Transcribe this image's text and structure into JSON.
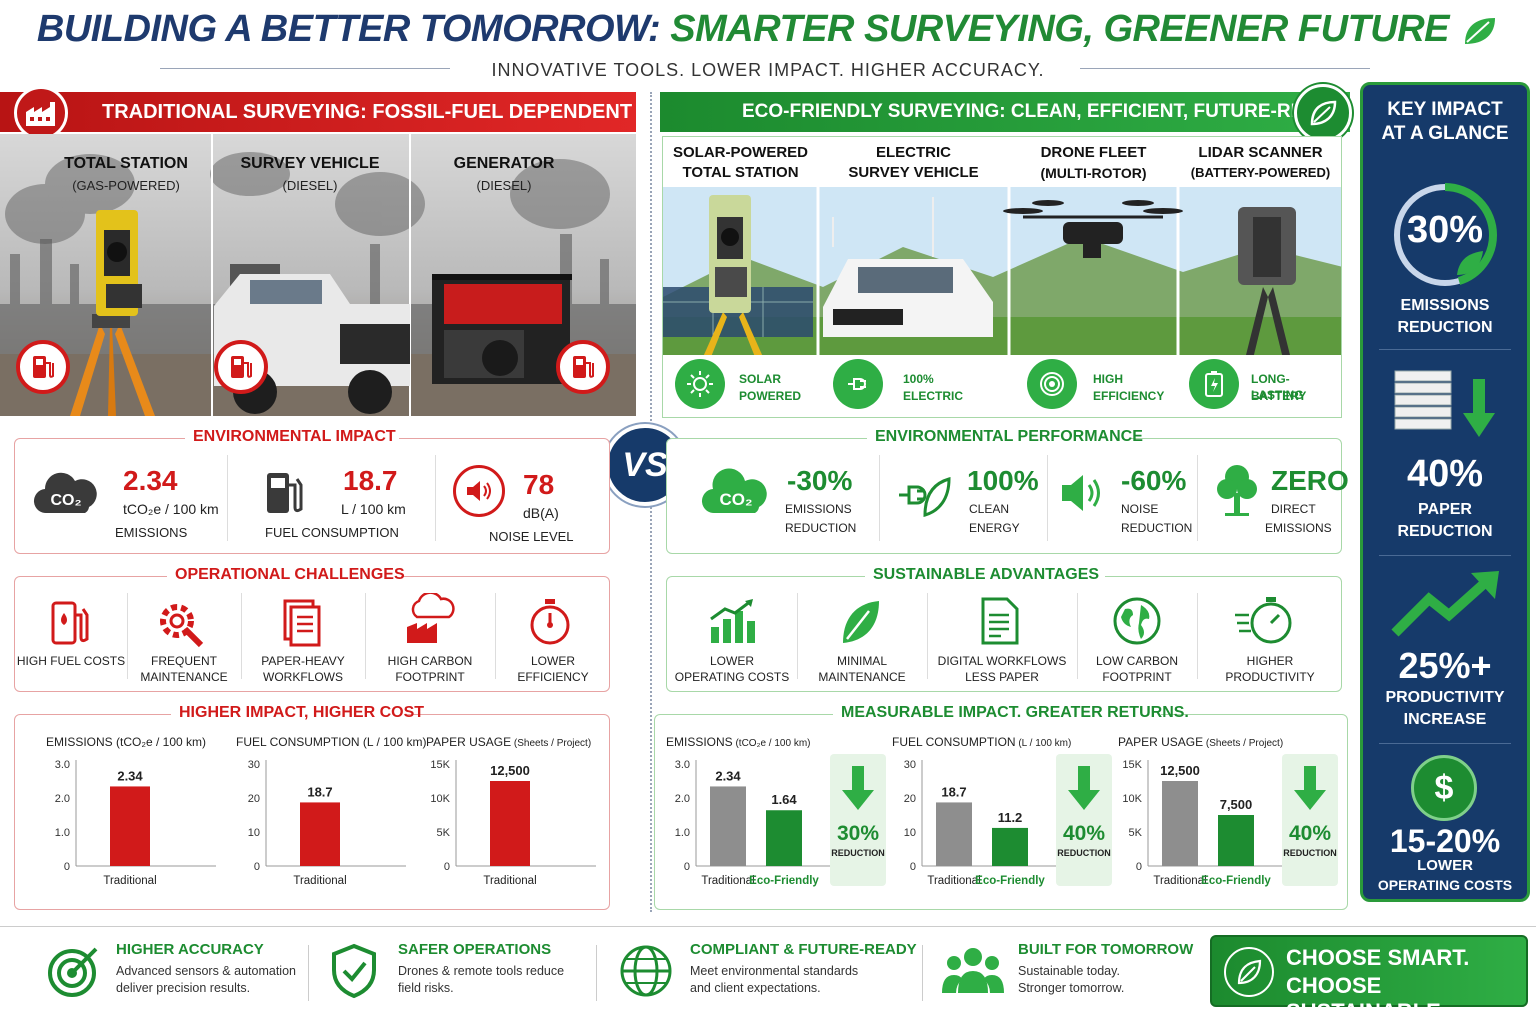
{
  "header": {
    "title_part1": "BUILDING A BETTER TOMORROW:",
    "title_part2": "SMARTER SURVEYING, GREENER FUTURE",
    "subtitle": "INNOVATIVE TOOLS. LOWER IMPACT. HIGHER ACCURACY."
  },
  "traditional": {
    "banner": "TRADITIONAL SURVEYING: FOSSIL-FUEL DEPENDENT",
    "equipment": [
      {
        "name": "TOTAL STATION",
        "sub": "(GAS-POWERED)"
      },
      {
        "name": "SURVEY VEHICLE",
        "sub": "(DIESEL)"
      },
      {
        "name": "GENERATOR",
        "sub": "(DIESEL)"
      }
    ],
    "env_title": "ENVIRONMENTAL IMPACT",
    "env": [
      {
        "value": "2.34",
        "unit": "tCO₂e / 100 km",
        "label": "EMISSIONS"
      },
      {
        "value": "18.7",
        "unit": "L / 100 km",
        "label": "FUEL CONSUMPTION"
      },
      {
        "value": "78",
        "unit": "dB(A)",
        "label": "NOISE LEVEL"
      }
    ],
    "ops_title": "OPERATIONAL CHALLENGES",
    "ops": [
      {
        "l1": "HIGH FUEL COSTS",
        "l2": ""
      },
      {
        "l1": "FREQUENT",
        "l2": "MAINTENANCE"
      },
      {
        "l1": "PAPER-HEAVY",
        "l2": "WORKFLOWS"
      },
      {
        "l1": "HIGH CARBON",
        "l2": "FOOTPRINT"
      },
      {
        "l1": "LOWER",
        "l2": "EFFICIENCY"
      }
    ],
    "charts_title": "HIGHER IMPACT, HIGHER COST"
  },
  "vs": "VS",
  "eco": {
    "banner": "ECO-FRIENDLY SURVEYING: CLEAN, EFFICIENT, FUTURE-READY",
    "equipment": [
      {
        "l1": "SOLAR-POWERED",
        "l2": "TOTAL STATION",
        "f1": "SOLAR",
        "f2": "POWERED"
      },
      {
        "l1": "ELECTRIC",
        "l2": "SURVEY VEHICLE",
        "f1": "100%",
        "f2": "ELECTRIC"
      },
      {
        "l1": "DRONE FLEET",
        "l2": "(MULTI-ROTOR)",
        "f1": "HIGH",
        "f2": "EFFICIENCY"
      },
      {
        "l1": "LIDAR SCANNER",
        "l2": "(BATTERY-POWERED)",
        "f1": "LONG-LASTING",
        "f2": "BATTERY"
      }
    ],
    "env_title": "ENVIRONMENTAL PERFORMANCE",
    "env": [
      {
        "value": "-30%",
        "l1": "EMISSIONS",
        "l2": "REDUCTION"
      },
      {
        "value": "100%",
        "l1": "CLEAN",
        "l2": "ENERGY"
      },
      {
        "value": "-60%",
        "l1": "NOISE",
        "l2": "REDUCTION"
      },
      {
        "value": "ZERO",
        "l1": "DIRECT",
        "l2": "EMISSIONS"
      }
    ],
    "adv_title": "SUSTAINABLE ADVANTAGES",
    "adv": [
      {
        "l1": "LOWER",
        "l2": "OPERATING COSTS"
      },
      {
        "l1": "MINIMAL",
        "l2": "MAINTENANCE"
      },
      {
        "l1": "DIGITAL WORKFLOWS",
        "l2": "LESS PAPER"
      },
      {
        "l1": "LOW CARBON",
        "l2": "FOOTPRINT"
      },
      {
        "l1": "HIGHER",
        "l2": "PRODUCTIVITY"
      }
    ],
    "charts_title": "MEASURABLE IMPACT. GREATER RETURNS."
  },
  "sidebar": {
    "title_l1": "KEY IMPACT",
    "title_l2": "AT A GLANCE",
    "items": [
      {
        "value": "30%",
        "l1": "EMISSIONS",
        "l2": "REDUCTION"
      },
      {
        "value": "40%",
        "l1": "PAPER",
        "l2": "REDUCTION"
      },
      {
        "value": "25%+",
        "l1": "PRODUCTIVITY",
        "l2": "INCREASE"
      },
      {
        "value": "15-20%",
        "l1": "LOWER",
        "l2": "OPERATING COSTS"
      }
    ],
    "dollar": "$"
  },
  "footer": {
    "items": [
      {
        "title": "HIGHER ACCURACY",
        "t1": "Advanced sensors & automation",
        "t2": "deliver precision results."
      },
      {
        "title": "SAFER OPERATIONS",
        "t1": "Drones & remote tools reduce",
        "t2": "field risks."
      },
      {
        "title": "COMPLIANT & FUTURE-READY",
        "t1": "Meet environmental standards",
        "t2": "and client expectations."
      },
      {
        "title": "BUILT FOR TOMORROW",
        "t1": "Sustainable today.",
        "t2": "Stronger tomorrow."
      }
    ],
    "cta_l1": "CHOOSE SMART.",
    "cta_l2": "CHOOSE SUSTAINABLE."
  },
  "colors": {
    "trad_red": "#d11a1a",
    "eco_green": "#1d8c31",
    "navy": "#163a6a",
    "gray_bar": "#8e8e8e"
  },
  "chart_data": [
    {
      "type": "bar",
      "title": "EMISSIONS (tCO₂e / 100 km)",
      "categories": [
        "Traditional"
      ],
      "values": [
        2.34
      ],
      "labels": [
        "2.34"
      ],
      "yticks": [
        "3.0",
        "2.0",
        "1.0",
        "0"
      ],
      "ylim": [
        0,
        3.0
      ]
    },
    {
      "type": "bar",
      "title": "FUEL CONSUMPTION (L / 100 km)",
      "categories": [
        "Traditional"
      ],
      "values": [
        18.7
      ],
      "labels": [
        "18.7"
      ],
      "yticks": [
        "30",
        "20",
        "10",
        "0"
      ],
      "ylim": [
        0,
        30
      ]
    },
    {
      "type": "bar",
      "title": "PAPER USAGE",
      "title_small": "(Sheets / Project)",
      "categories": [
        "Traditional"
      ],
      "values": [
        12500
      ],
      "labels": [
        "12,500"
      ],
      "yticks": [
        "15K",
        "10K",
        "5K",
        "0"
      ],
      "ylim": [
        0,
        15000
      ]
    },
    {
      "type": "bar",
      "title": "EMISSIONS",
      "title_small": "(tCO₂e / 100 km)",
      "categories": [
        "Traditional",
        "Eco-Friendly"
      ],
      "values": [
        2.34,
        1.64
      ],
      "labels": [
        "2.34",
        "1.64"
      ],
      "yticks": [
        "3.0",
        "2.0",
        "1.0",
        "0"
      ],
      "ylim": [
        0,
        3.0
      ],
      "reduction": "30%",
      "reduction_label": "REDUCTION"
    },
    {
      "type": "bar",
      "title": "FUEL CONSUMPTION",
      "title_small": "(L / 100 km)",
      "categories": [
        "Traditional",
        "Eco-Friendly"
      ],
      "values": [
        18.7,
        11.2
      ],
      "labels": [
        "18.7",
        "11.2"
      ],
      "yticks": [
        "30",
        "20",
        "10",
        "0"
      ],
      "ylim": [
        0,
        30
      ],
      "reduction": "40%",
      "reduction_label": "REDUCTION"
    },
    {
      "type": "bar",
      "title": "PAPER USAGE",
      "title_small": "(Sheets / Project)",
      "categories": [
        "Traditional",
        "Eco-Friendly"
      ],
      "values": [
        12500,
        7500
      ],
      "labels": [
        "12,500",
        "7,500"
      ],
      "yticks": [
        "15K",
        "10K",
        "5K",
        "0"
      ],
      "ylim": [
        0,
        15000
      ],
      "reduction": "40%",
      "reduction_label": "REDUCTION"
    }
  ]
}
